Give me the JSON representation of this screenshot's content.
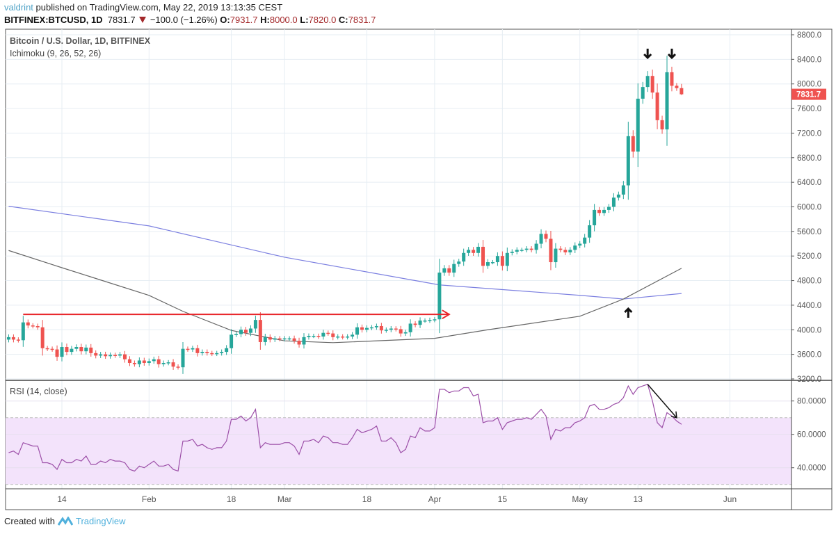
{
  "header": {
    "user": "valdrint",
    "published": "published on TradingView.com, May 22, 2019 13:13:35 CEST",
    "symbol": "BITFINEX:BTCUSD, 1D",
    "last": "7831.7",
    "change": "−100.0 (−1.26%)",
    "o_label": "O:",
    "o": "7931.7",
    "h_label": "H:",
    "h": "8000.0",
    "l_label": "L:",
    "l": "7820.0",
    "c_label": "C:",
    "c": "7831.7"
  },
  "legend": {
    "title": "Bitcoin / U.S. Dollar, 1D, BITFINEX",
    "indicator": "Ichimoku (9, 26, 52, 26)",
    "rsi": "RSI (14, close)"
  },
  "footer": {
    "created_with": "Created with",
    "brand": "TradingView"
  },
  "colors": {
    "up": "#26a69a",
    "down": "#ef5350",
    "ma_blue": "#7b7fe0",
    "ma_grey": "#666666",
    "rsi": "#9c4fa8",
    "rsi_band": "#f3e3fb",
    "annotation_red": "#e8252a",
    "annotation_black": "#111111"
  },
  "chart_data": [
    {
      "type": "candlestick",
      "start_date": "2019-01-03",
      "interval": "1D",
      "closes": {
        "Jan": [
          3880,
          3840,
          3830,
          4120,
          4070,
          4060,
          4040,
          3700,
          3690,
          3680,
          3560,
          3720,
          3640,
          3690,
          3720,
          3650,
          3710,
          3620,
          3580,
          3600,
          3570,
          3590,
          3580,
          3600,
          3520,
          3460,
          3440,
          3500,
          3460
        ],
        "Feb": [
          3490,
          3520,
          3440,
          3460,
          3470,
          3400,
          3390,
          3690,
          3680,
          3700,
          3620,
          3640,
          3620,
          3610,
          3620,
          3640,
          3700,
          3920,
          3930,
          4000,
          3950,
          4020,
          4160,
          3800,
          3880,
          3840,
          3860,
          3850
        ],
        "Mar": [
          3860,
          3860,
          3820,
          3760,
          3880,
          3900,
          3900,
          3890,
          3950,
          3940,
          3880,
          3890,
          3880,
          3890,
          3920,
          4040,
          4000,
          4030,
          4040,
          4060,
          3990,
          4000,
          4020,
          4010,
          3940,
          3960,
          4100,
          4080,
          4150,
          4150,
          4160
        ],
        "Apr": [
          4170,
          4930,
          5000,
          4930,
          5070,
          5110,
          5250,
          5300,
          5250,
          5350,
          5040,
          5100,
          5100,
          5200,
          5040,
          5250,
          5270,
          5300,
          5300,
          5320,
          5300,
          5400,
          5560,
          5480,
          5100,
          5320,
          5300,
          5260,
          5300,
          5370
        ],
        "May": [
          5400,
          5500,
          5700,
          5950,
          5900,
          5950,
          6000,
          6150,
          6200,
          6350,
          7150,
          6900,
          7760,
          7950,
          8130,
          7860,
          7410,
          7260,
          8190,
          7970,
          7931.7,
          7831.7
        ]
      },
      "last_candle": {
        "open": 7931.7,
        "high": 8000.0,
        "low": 7820.0,
        "close": 7831.7
      },
      "ylim": [
        3200,
        8800
      ],
      "y_ticks": [
        "8800.0",
        "8400.0",
        "8000.0",
        "7600.0",
        "7200.0",
        "6800.0",
        "6400.0",
        "6000.0",
        "5600.0",
        "5200.0",
        "4800.0",
        "4400.0",
        "4000.0",
        "3600.0",
        "3200.0"
      ],
      "last_price_label": "7831.7",
      "lines": [
        {
          "color": "blue",
          "points": [
            [
              "2019-01-03",
              6010
            ],
            [
              "2019-02-01",
              5690
            ],
            [
              "2019-03-01",
              5180
            ],
            [
              "2019-04-02",
              4730
            ],
            [
              "2019-05-01",
              4560
            ],
            [
              "2019-05-10",
              4500
            ],
            [
              "2019-05-22",
              4590
            ]
          ]
        },
        {
          "color": "grey",
          "points": [
            [
              "2019-01-03",
              5290
            ],
            [
              "2019-01-14",
              5010
            ],
            [
              "2019-02-01",
              4560
            ],
            [
              "2019-02-08",
              4300
            ],
            [
              "2019-02-18",
              3990
            ],
            [
              "2019-03-01",
              3820
            ],
            [
              "2019-03-11",
              3790
            ],
            [
              "2019-04-01",
              3860
            ],
            [
              "2019-04-12",
              4000
            ],
            [
              "2019-05-01",
              4220
            ],
            [
              "2019-05-10",
              4500
            ],
            [
              "2019-05-22",
              5000
            ]
          ]
        }
      ],
      "annotations": [
        {
          "type": "horizontal-arrow",
          "color": "red",
          "from": "2019-01-06",
          "to": "2019-04-04",
          "price": 4250
        },
        {
          "type": "down-arrow",
          "date": "2019-05-15"
        },
        {
          "type": "down-arrow",
          "date": "2019-05-20"
        },
        {
          "type": "up-arrow",
          "date": "2019-05-11"
        }
      ],
      "grid": true
    },
    {
      "type": "line",
      "title": "RSI (14, close)",
      "start_date": "2019-01-03",
      "values": {
        "Jan": [
          49,
          50,
          48,
          55,
          54,
          53,
          53,
          43,
          43,
          42,
          39,
          45,
          43,
          43,
          45,
          44,
          47,
          42,
          42,
          44,
          43,
          45,
          44,
          44,
          43,
          39,
          38,
          41,
          40
        ],
        "Feb": [
          42,
          44,
          41,
          41,
          42,
          39,
          38,
          56,
          56,
          57,
          53,
          54,
          52,
          51,
          52,
          52,
          56,
          69,
          69,
          71,
          68,
          70,
          75,
          52,
          55,
          54,
          54,
          54
        ],
        "Mar": [
          55,
          55,
          53,
          48,
          56,
          56,
          57,
          55,
          59,
          58,
          55,
          55,
          54,
          54,
          58,
          63,
          61,
          62,
          63,
          65,
          56,
          56,
          58,
          55,
          49,
          51,
          59,
          58,
          64,
          62,
          62
        ],
        "Apr": [
          64,
          87,
          87,
          85,
          86,
          86,
          88,
          88,
          83,
          84,
          67,
          68,
          68,
          70,
          63,
          67,
          68,
          69,
          69,
          70,
          69,
          72,
          75,
          71,
          57,
          63,
          62,
          64,
          64,
          67
        ],
        "May": [
          68,
          70,
          77,
          78,
          75,
          75,
          76,
          78,
          79,
          82,
          89,
          84,
          88,
          89,
          90,
          80,
          67,
          64,
          73,
          71,
          68,
          66
        ]
      },
      "band": [
        30,
        70
      ],
      "y_ticks": [
        "80.0000",
        "60.0000",
        "40.0000"
      ],
      "annotations": [
        {
          "type": "arrow",
          "from": [
            "2019-05-15",
            90
          ],
          "to": [
            "2019-05-21",
            70
          ]
        }
      ]
    }
  ],
  "x_ticks": [
    {
      "date": "2019-01-14",
      "label": "14"
    },
    {
      "date": "2019-02-01",
      "label": "Feb"
    },
    {
      "date": "2019-02-18",
      "label": "18"
    },
    {
      "date": "2019-03-01",
      "label": "Mar"
    },
    {
      "date": "2019-03-18",
      "label": "18"
    },
    {
      "date": "2019-04-01",
      "label": "Apr"
    },
    {
      "date": "2019-04-15",
      "label": "15"
    },
    {
      "date": "2019-05-01",
      "label": "May"
    },
    {
      "date": "2019-05-13",
      "label": "13"
    },
    {
      "date": "2019-06-01",
      "label": "Jun"
    }
  ]
}
